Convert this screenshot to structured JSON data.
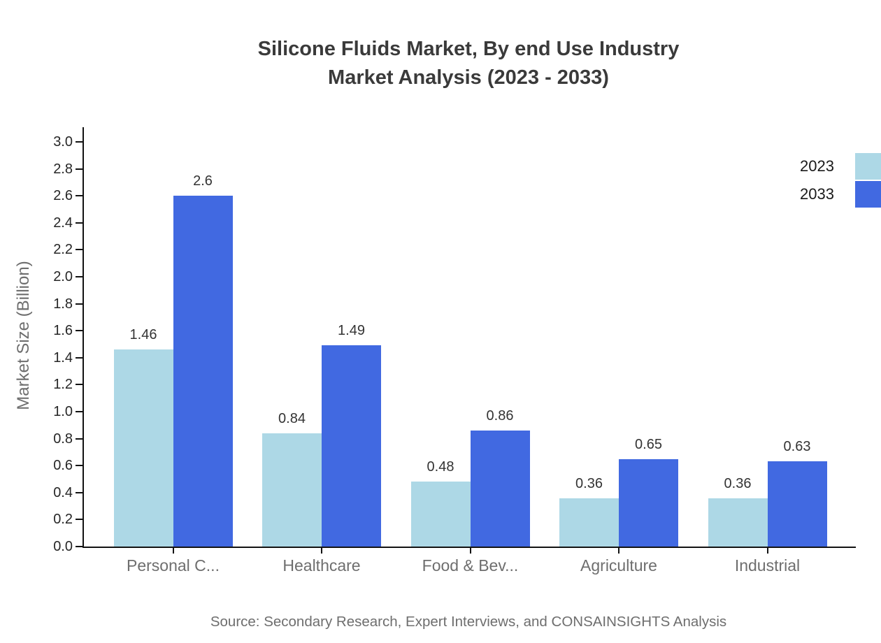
{
  "title": {
    "line1": "Silicone Fluids Market, By end Use Industry",
    "line2": "Market Analysis (2023 - 2033)"
  },
  "source": "Source: Secondary Research, Expert Interviews, and CONSAINSIGHTS Analysis",
  "chart_data": {
    "type": "bar",
    "title": "Silicone Fluids Market, By end Use Industry Market Analysis (2023 - 2033)",
    "categories": [
      "Personal C...",
      "Healthcare",
      "Food & Bev...",
      "Agriculture",
      "Industrial"
    ],
    "series": [
      {
        "name": "2023",
        "color": "#ADD8E6",
        "values": [
          1.46,
          0.84,
          0.48,
          0.36,
          0.36
        ]
      },
      {
        "name": "2033",
        "color": "#4169E1",
        "values": [
          2.6,
          1.49,
          0.86,
          0.65,
          0.63
        ]
      }
    ],
    "xlabel": "",
    "ylabel": "Market Size (Billion)",
    "ylim": [
      0.0,
      3.0
    ],
    "yticks": [
      0.0,
      0.2,
      0.4,
      0.6,
      0.8,
      1.0,
      1.2,
      1.4,
      1.6,
      1.8,
      2.0,
      2.2,
      2.4,
      2.6,
      2.8,
      3.0
    ],
    "grid": false,
    "legend_position": "upper-right",
    "bar_value_labels_shown": true,
    "axis_color": "#121212",
    "label_color": "#6e6e6e"
  }
}
